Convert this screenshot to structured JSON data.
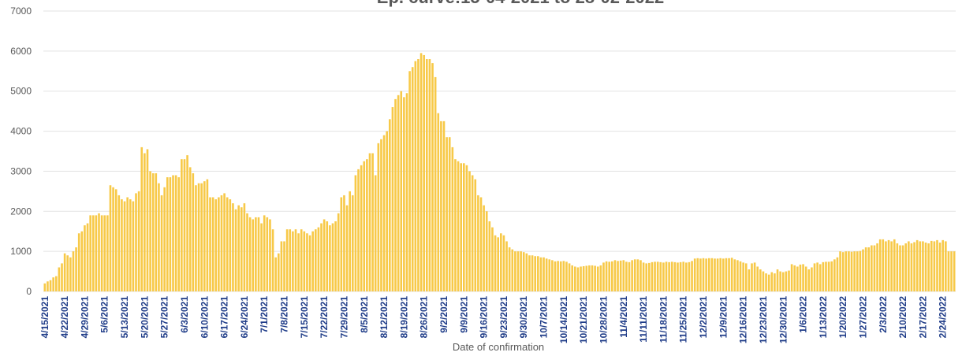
{
  "chart_data": {
    "type": "bar",
    "title": "Ep. curve:15-04-2021 to  28-02-2022",
    "x_label": "Date of confirmation",
    "color": "#f7c948",
    "grid": true,
    "ylim": [
      0,
      7000
    ],
    "yticks": [
      0,
      1000,
      2000,
      3000,
      4000,
      5000,
      6000,
      7000
    ],
    "categories": [
      "4/15/2021",
      null,
      null,
      null,
      null,
      null,
      null,
      "4/22/2021",
      null,
      null,
      null,
      null,
      null,
      null,
      "4/29/2021",
      null,
      null,
      null,
      null,
      null,
      null,
      "5/6/2021",
      null,
      null,
      null,
      null,
      null,
      null,
      "5/13/2021",
      null,
      null,
      null,
      null,
      null,
      null,
      "5/20/2021",
      null,
      null,
      null,
      null,
      null,
      null,
      "5/27/2021",
      null,
      null,
      null,
      null,
      null,
      null,
      "6/3/2021",
      null,
      null,
      null,
      null,
      null,
      null,
      "6/10/2021",
      null,
      null,
      null,
      null,
      null,
      null,
      "6/17/2021",
      null,
      null,
      null,
      null,
      null,
      null,
      "6/24/2021",
      null,
      null,
      null,
      null,
      null,
      null,
      "7/1/2021",
      null,
      null,
      null,
      null,
      null,
      null,
      "7/8/2021",
      null,
      null,
      null,
      null,
      null,
      null,
      "7/15/2021",
      null,
      null,
      null,
      null,
      null,
      null,
      "7/22/2021",
      null,
      null,
      null,
      null,
      null,
      null,
      "7/29/2021",
      null,
      null,
      null,
      null,
      null,
      null,
      "8/5/2021",
      null,
      null,
      null,
      null,
      null,
      null,
      "8/12/2021",
      null,
      null,
      null,
      null,
      null,
      null,
      "8/19/2021",
      null,
      null,
      null,
      null,
      null,
      null,
      "8/26/2021",
      null,
      null,
      null,
      null,
      null,
      null,
      "9/2/2021",
      null,
      null,
      null,
      null,
      null,
      null,
      "9/9/2021",
      null,
      null,
      null,
      null,
      null,
      null,
      "9/16/2021",
      null,
      null,
      null,
      null,
      null,
      null,
      "9/23/2021",
      null,
      null,
      null,
      null,
      null,
      null,
      "9/30/2021",
      null,
      null,
      null,
      null,
      null,
      null,
      "10/7/2021",
      null,
      null,
      null,
      null,
      null,
      null,
      "10/14/2021",
      null,
      null,
      null,
      null,
      null,
      null,
      "10/21/2021",
      null,
      null,
      null,
      null,
      null,
      null,
      "10/28/2021",
      null,
      null,
      null,
      null,
      null,
      null,
      "11/4/2021",
      null,
      null,
      null,
      null,
      null,
      null,
      "11/11/2021",
      null,
      null,
      null,
      null,
      null,
      null,
      "11/18/2021",
      null,
      null,
      null,
      null,
      null,
      null,
      "11/25/2021",
      null,
      null,
      null,
      null,
      null,
      null,
      "12/2/2021",
      null,
      null,
      null,
      null,
      null,
      null,
      "12/9/2021",
      null,
      null,
      null,
      null,
      null,
      null,
      "12/16/2021",
      null,
      null,
      null,
      null,
      null,
      null,
      "12/23/2021",
      null,
      null,
      null,
      null,
      null,
      null,
      "12/30/2021",
      null,
      null,
      null,
      null,
      null,
      null,
      "1/6/2022",
      null,
      null,
      null,
      null,
      null,
      null,
      "1/13/2022",
      null,
      null,
      null,
      null,
      null,
      null,
      "1/20/2022",
      null,
      null,
      null,
      null,
      null,
      null,
      "1/27/2022",
      null,
      null,
      null,
      null,
      null,
      null,
      "2/3/2022",
      null,
      null,
      null,
      null,
      null,
      null,
      "2/10/2022",
      null,
      null,
      null,
      null,
      null,
      null,
      "2/17/2022",
      null,
      null,
      null,
      null,
      null,
      null,
      "2/24/2022",
      null,
      null,
      null,
      null
    ],
    "values": [
      200,
      250,
      280,
      350,
      380,
      600,
      700,
      950,
      900,
      850,
      1000,
      1100,
      1450,
      1500,
      1650,
      1700,
      1900,
      1900,
      1900,
      1950,
      1900,
      1900,
      1900,
      2650,
      2600,
      2550,
      2400,
      2300,
      2250,
      2350,
      2300,
      2250,
      2450,
      2500,
      3600,
      3450,
      3550,
      3000,
      2950,
      2950,
      2700,
      2400,
      2600,
      2850,
      2850,
      2900,
      2900,
      2850,
      3300,
      3300,
      3400,
      3100,
      2950,
      2650,
      2700,
      2700,
      2750,
      2800,
      2350,
      2350,
      2300,
      2350,
      2400,
      2450,
      2350,
      2300,
      2200,
      2050,
      2150,
      2100,
      2200,
      1950,
      1850,
      1800,
      1850,
      1850,
      1700,
      1900,
      1850,
      1800,
      1550,
      850,
      950,
      1250,
      1250,
      1550,
      1550,
      1500,
      1550,
      1450,
      1550,
      1500,
      1450,
      1400,
      1500,
      1550,
      1600,
      1700,
      1800,
      1750,
      1650,
      1700,
      1750,
      1950,
      2350,
      2400,
      2150,
      2500,
      2400,
      2900,
      3050,
      3150,
      3250,
      3300,
      3450,
      3450,
      2900,
      3700,
      3800,
      3900,
      4000,
      4300,
      4600,
      4800,
      4900,
      5000,
      4850,
      4950,
      5500,
      5600,
      5750,
      5800,
      5950,
      5900,
      5800,
      5800,
      5700,
      5350,
      4450,
      4250,
      4250,
      3850,
      3850,
      3600,
      3300,
      3250,
      3200,
      3200,
      3150,
      3000,
      2900,
      2800,
      2400,
      2350,
      2150,
      2000,
      1750,
      1600,
      1400,
      1350,
      1450,
      1400,
      1250,
      1100,
      1050,
      1000,
      1000,
      1000,
      980,
      950,
      900,
      900,
      880,
      880,
      850,
      850,
      820,
      800,
      780,
      750,
      760,
      750,
      760,
      740,
      700,
      650,
      620,
      600,
      620,
      630,
      640,
      650,
      650,
      640,
      620,
      650,
      720,
      750,
      740,
      750,
      780,
      760,
      770,
      780,
      740,
      730,
      780,
      800,
      800,
      780,
      720,
      700,
      710,
      730,
      740,
      740,
      730,
      720,
      740,
      730,
      740,
      730,
      720,
      730,
      740,
      720,
      730,
      760,
      820,
      830,
      820,
      830,
      820,
      830,
      830,
      820,
      820,
      830,
      820,
      830,
      830,
      840,
      800,
      780,
      750,
      720,
      700,
      550,
      700,
      720,
      620,
      550,
      500,
      450,
      420,
      480,
      450,
      550,
      500,
      480,
      500,
      520,
      680,
      650,
      620,
      670,
      680,
      620,
      550,
      600,
      700,
      720,
      680,
      730,
      740,
      740,
      750,
      800,
      850,
      1000,
      980,
      1000,
      1000,
      990,
      1000,
      1000,
      1010,
      1050,
      1100,
      1100,
      1150,
      1150,
      1200,
      1300,
      1300,
      1250,
      1280,
      1250,
      1300,
      1200,
      1150,
      1150,
      1200,
      1250,
      1200,
      1230,
      1280,
      1250,
      1250,
      1220,
      1200,
      1260,
      1250,
      1280,
      1220,
      1280,
      1250,
      1000,
      1000,
      1000
    ]
  }
}
